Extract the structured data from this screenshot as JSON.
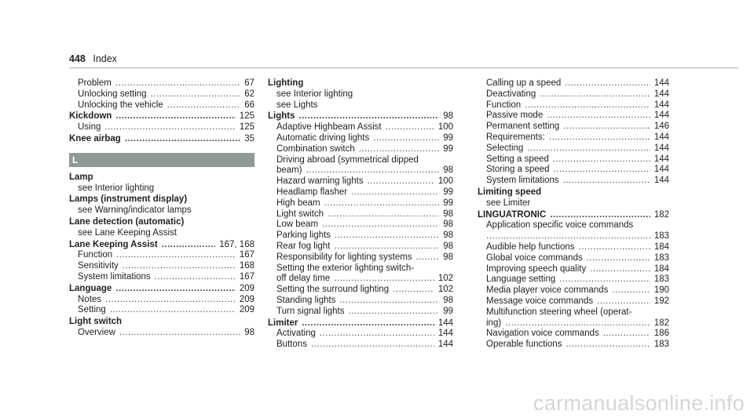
{
  "header": {
    "page_number": "448",
    "section": "Index"
  },
  "section_letter": "L",
  "columns": [
    [
      {
        "text": "Problem",
        "page": "67",
        "level": "sub"
      },
      {
        "text": "Unlocking setting",
        "page": "62",
        "level": "sub"
      },
      {
        "text": "Unlocking the vehicle",
        "page": "66",
        "level": "sub"
      },
      {
        "text": "Kickdown",
        "page": "125",
        "level": "main"
      },
      {
        "text": "Using",
        "page": "125",
        "level": "sub"
      },
      {
        "text": "Knee airbag",
        "page": "35",
        "level": "main"
      },
      {
        "band": true
      },
      {
        "text": "Lamp",
        "page": "",
        "level": "main"
      },
      {
        "text": "see Interior lighting",
        "page": "",
        "level": "sub"
      },
      {
        "text": "Lamps (instrument display)",
        "page": "",
        "level": "main"
      },
      {
        "text": "see Warning/indicator lamps",
        "page": "",
        "level": "sub"
      },
      {
        "text": "Lane detection (automatic)",
        "page": "",
        "level": "main"
      },
      {
        "text": "see Lane Keeping Assist",
        "page": "",
        "level": "sub"
      },
      {
        "text": "Lane Keeping Assist",
        "page": "167, 168",
        "level": "main"
      },
      {
        "text": "Function",
        "page": "167",
        "level": "sub"
      },
      {
        "text": "Sensitivity",
        "page": "168",
        "level": "sub"
      },
      {
        "text": "System limitations",
        "page": "167",
        "level": "sub"
      },
      {
        "text": "Language",
        "page": "209",
        "level": "main"
      },
      {
        "text": "Notes",
        "page": "209",
        "level": "sub"
      },
      {
        "text": "Setting",
        "page": "209",
        "level": "sub"
      },
      {
        "text": "Light switch",
        "page": "",
        "level": "main"
      },
      {
        "text": "Overview",
        "page": "98",
        "level": "sub"
      }
    ],
    [
      {
        "text": "Lighting",
        "page": "",
        "level": "main",
        "first": true
      },
      {
        "text": "see Interior lighting",
        "page": "",
        "level": "sub"
      },
      {
        "text": "see Lights",
        "page": "",
        "level": "sub"
      },
      {
        "text": "Lights",
        "page": "98",
        "level": "main"
      },
      {
        "text": "Adaptive Highbeam Assist",
        "page": "100",
        "level": "sub"
      },
      {
        "text": "Automatic driving lights",
        "page": "99",
        "level": "sub"
      },
      {
        "text": "Combination switch",
        "page": "99",
        "level": "sub"
      },
      {
        "text": "Driving abroad (symmetrical dipped",
        "page": "",
        "level": "sub"
      },
      {
        "text": "beam)",
        "page": "98",
        "level": "sub"
      },
      {
        "text": "Hazard warning lights",
        "page": "100",
        "level": "sub"
      },
      {
        "text": "Headlamp flasher",
        "page": "99",
        "level": "sub"
      },
      {
        "text": "High beam",
        "page": "99",
        "level": "sub"
      },
      {
        "text": "Light switch",
        "page": "98",
        "level": "sub"
      },
      {
        "text": "Low beam",
        "page": "98",
        "level": "sub"
      },
      {
        "text": "Parking lights",
        "page": "98",
        "level": "sub"
      },
      {
        "text": "Rear fog light",
        "page": "98",
        "level": "sub"
      },
      {
        "text": "Responsibility for lighting systems",
        "page": "98",
        "level": "sub"
      },
      {
        "text": "Setting the exterior lighting switch-",
        "page": "",
        "level": "sub"
      },
      {
        "text": "off delay time",
        "page": "102",
        "level": "sub"
      },
      {
        "text": "Setting the surround lighting",
        "page": "102",
        "level": "sub"
      },
      {
        "text": "Standing lights",
        "page": "98",
        "level": "sub"
      },
      {
        "text": "Turn signal lights",
        "page": "99",
        "level": "sub"
      },
      {
        "text": "Limiter",
        "page": "144",
        "level": "main"
      },
      {
        "text": "Activating",
        "page": "144",
        "level": "sub"
      },
      {
        "text": "Buttons",
        "page": "144",
        "level": "sub"
      }
    ],
    [
      {
        "text": "Calling up a speed",
        "page": "144",
        "level": "sub"
      },
      {
        "text": "Deactivating",
        "page": "144",
        "level": "sub"
      },
      {
        "text": "Function",
        "page": "144",
        "level": "sub"
      },
      {
        "text": "Passive mode",
        "page": "144",
        "level": "sub"
      },
      {
        "text": "Permanent setting",
        "page": "146",
        "level": "sub"
      },
      {
        "text": "Requirements:",
        "page": "144",
        "level": "sub"
      },
      {
        "text": "Selecting",
        "page": "144",
        "level": "sub"
      },
      {
        "text": "Setting a speed",
        "page": "144",
        "level": "sub"
      },
      {
        "text": "Storing a speed",
        "page": "144",
        "level": "sub"
      },
      {
        "text": "System limitations",
        "page": "144",
        "level": "sub"
      },
      {
        "text": "Limiting speed",
        "page": "",
        "level": "main"
      },
      {
        "text": "see Limiter",
        "page": "",
        "level": "sub"
      },
      {
        "text": "LINGUATRONIC",
        "page": "182",
        "level": "main"
      },
      {
        "text": "Application specific voice commands",
        "page": "",
        "level": "sub"
      },
      {
        "text": "",
        "page": "183",
        "level": "sub"
      },
      {
        "text": "Audible help functions",
        "page": "184",
        "level": "sub"
      },
      {
        "text": "Global voice commands",
        "page": "183",
        "level": "sub"
      },
      {
        "text": "Improving speech quality",
        "page": "184",
        "level": "sub"
      },
      {
        "text": "Language setting",
        "page": "183",
        "level": "sub"
      },
      {
        "text": "Media player voice commands",
        "page": "190",
        "level": "sub"
      },
      {
        "text": "Message voice commands",
        "page": "192",
        "level": "sub"
      },
      {
        "text": "Multifunction steering wheel (operat-",
        "page": "",
        "level": "sub"
      },
      {
        "text": "ing)",
        "page": "182",
        "level": "sub"
      },
      {
        "text": "Navigation voice commands",
        "page": "186",
        "level": "sub"
      },
      {
        "text": "Operable functions",
        "page": "183",
        "level": "sub"
      }
    ]
  ],
  "watermark": "carmanualsonline.info"
}
